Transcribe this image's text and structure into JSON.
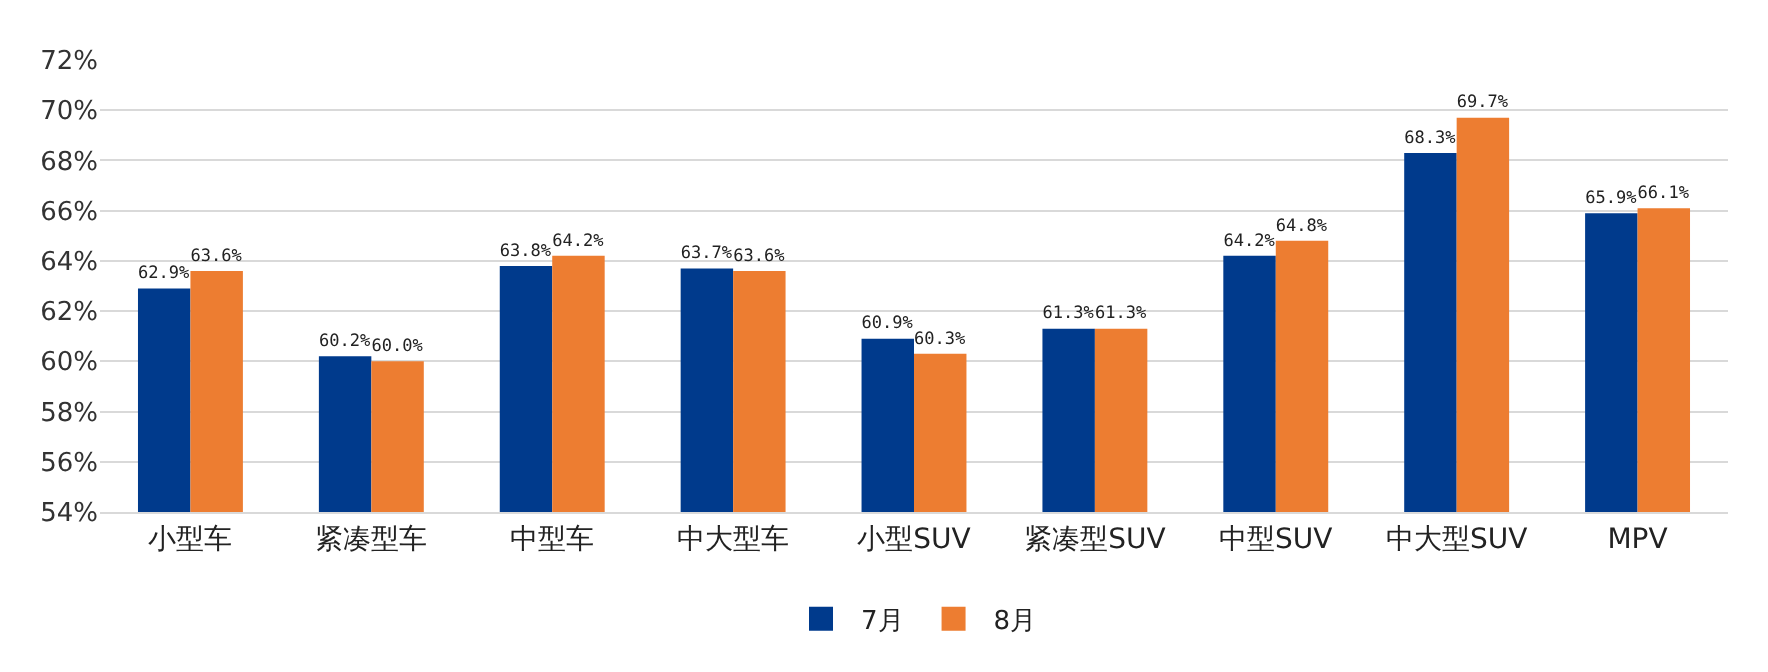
{
  "chart_data": {
    "type": "bar",
    "categories": [
      "小型车",
      "紧凑型车",
      "中型车",
      "中大型车",
      "小型SUV",
      "紧凑型SUV",
      "中型SUV",
      "中大型SUV",
      "MPV"
    ],
    "series": [
      {
        "name": "7月",
        "color": "#003a8c",
        "values": [
          62.9,
          60.2,
          63.8,
          63.7,
          60.9,
          61.3,
          64.2,
          68.3,
          65.9
        ],
        "value_labels": [
          "62.9%",
          "60.2%",
          "63.8%",
          "63.7%",
          "60.9%",
          "61.3%",
          "64.2%",
          "68.3%",
          "65.9%"
        ]
      },
      {
        "name": "8月",
        "color": "#ed7d31",
        "values": [
          63.6,
          60.0,
          64.2,
          63.6,
          60.3,
          61.3,
          64.8,
          69.7,
          66.1
        ],
        "value_labels": [
          "63.6%",
          "60.0%",
          "64.2%",
          "63.6%",
          "60.3%",
          "61.3%",
          "64.8%",
          "69.7%",
          "66.1%"
        ]
      }
    ],
    "ylim": [
      54,
      72
    ],
    "yticks": [
      {
        "value": 54,
        "label": "54%"
      },
      {
        "value": 56,
        "label": "56%"
      },
      {
        "value": 58,
        "label": "58%"
      },
      {
        "value": 60,
        "label": "60%"
      },
      {
        "value": 62,
        "label": "62%"
      },
      {
        "value": 64,
        "label": "64%"
      },
      {
        "value": 66,
        "label": "66%"
      },
      {
        "value": 68,
        "label": "68%"
      },
      {
        "value": 70,
        "label": "70%"
      },
      {
        "value": 72,
        "label": "72%"
      }
    ],
    "grid": "y",
    "legend": "bottom"
  }
}
